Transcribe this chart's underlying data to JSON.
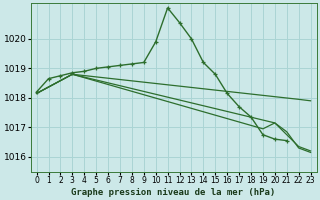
{
  "background_color": "#cce8e8",
  "grid_color": "#aad4d4",
  "line_color": "#2d6e2d",
  "title": "Graphe pression niveau de la mer (hPa)",
  "xlim": [
    -0.5,
    23.5
  ],
  "ylim": [
    1015.5,
    1021.2
  ],
  "yticks": [
    1016,
    1017,
    1018,
    1019,
    1020
  ],
  "xtick_labels": [
    "0",
    "1",
    "2",
    "3",
    "4",
    "5",
    "6",
    "7",
    "8",
    "9",
    "10",
    "11",
    "12",
    "13",
    "14",
    "15",
    "16",
    "17",
    "18",
    "19",
    "20",
    "21",
    "22",
    "23"
  ],
  "series": [
    {
      "x": [
        0,
        1,
        2,
        3,
        4,
        5,
        6,
        7,
        8,
        9,
        10,
        11,
        12,
        13,
        14,
        15,
        16,
        17,
        18,
        19,
        20,
        21,
        22,
        23
      ],
      "y": [
        1018.2,
        1018.65,
        1018.75,
        1018.85,
        1018.9,
        1019.0,
        1019.05,
        1019.1,
        1019.15,
        1019.2,
        1019.9,
        1021.05,
        1020.55,
        1020.0,
        1019.2,
        1018.8,
        1018.15,
        1017.7,
        1017.35,
        1016.75,
        1016.6,
        1016.55,
        null,
        null
      ],
      "marker": true
    },
    {
      "x": [
        0,
        3,
        22,
        23
      ],
      "y": [
        1018.15,
        1018.8,
        1017.95,
        1017.9
      ],
      "marker": false
    },
    {
      "x": [
        0,
        3,
        19,
        20,
        21,
        22,
        23
      ],
      "y": [
        1018.15,
        1018.8,
        1016.95,
        1017.15,
        1016.75,
        1016.35,
        1016.2
      ],
      "marker": false
    },
    {
      "x": [
        0,
        3,
        20,
        21,
        22,
        23
      ],
      "y": [
        1018.15,
        1018.8,
        1017.15,
        1016.85,
        1016.3,
        1016.15
      ],
      "marker": false
    }
  ]
}
